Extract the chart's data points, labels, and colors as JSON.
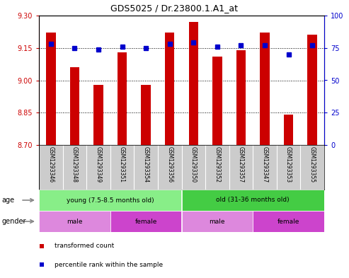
{
  "title": "GDS5025 / Dr.23800.1.A1_at",
  "samples": [
    "GSM1293346",
    "GSM1293348",
    "GSM1293349",
    "GSM1293351",
    "GSM1293354",
    "GSM1293356",
    "GSM1293350",
    "GSM1293352",
    "GSM1293357",
    "GSM1293347",
    "GSM1293353",
    "GSM1293355"
  ],
  "bar_values": [
    9.22,
    9.06,
    8.98,
    9.13,
    8.98,
    9.22,
    9.27,
    9.11,
    9.14,
    9.22,
    8.84,
    9.21
  ],
  "percentile_values": [
    78,
    75,
    74,
    76,
    75,
    78,
    79,
    76,
    77,
    77,
    70,
    77
  ],
  "ylim_left": [
    8.7,
    9.3
  ],
  "ylim_right": [
    0,
    100
  ],
  "yticks_left": [
    8.7,
    8.85,
    9.0,
    9.15,
    9.3
  ],
  "yticks_right": [
    0,
    25,
    50,
    75,
    100
  ],
  "bar_color": "#cc0000",
  "dot_color": "#0000cc",
  "age_groups": [
    {
      "label": "young (7.5-8.5 months old)",
      "start": 0,
      "end": 6,
      "color": "#88ee88"
    },
    {
      "label": "old (31-36 months old)",
      "start": 6,
      "end": 12,
      "color": "#44cc44"
    }
  ],
  "gender_groups": [
    {
      "label": "male",
      "start": 0,
      "end": 3,
      "color": "#dd88dd"
    },
    {
      "label": "female",
      "start": 3,
      "end": 6,
      "color": "#cc44cc"
    },
    {
      "label": "male",
      "start": 6,
      "end": 9,
      "color": "#dd88dd"
    },
    {
      "label": "female",
      "start": 9,
      "end": 12,
      "color": "#cc44cc"
    }
  ],
  "age_label": "age",
  "gender_label": "gender",
  "sample_bg_color": "#cccccc",
  "legend_items": [
    {
      "color": "#cc0000",
      "label": "transformed count"
    },
    {
      "color": "#0000cc",
      "label": "percentile rank within the sample"
    }
  ]
}
